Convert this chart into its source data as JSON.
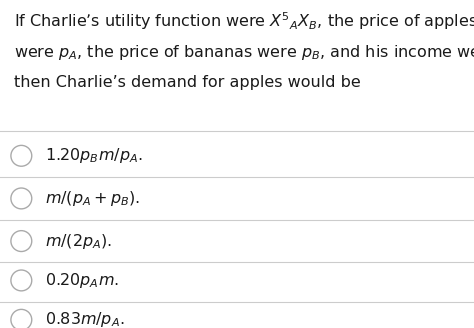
{
  "bg_color": "#ffffff",
  "text_color": "#1a1a1a",
  "question_lines": [
    "If Charlie’s utility function were $X^{5}{}_{A}X_{B}$, the price of apples",
    "were $p_{A}$, the price of bananas were $p_{B}$, and his income were $m$,",
    "then Charlie’s demand for apples would be"
  ],
  "options": [
    "$1.20p_{B}m/p_{A}$.",
    "$m/(p_{A}+p_{B})$.",
    "$m/(2p_{A})$.",
    "$0.20p_{A}m$.",
    "$0.83m/p_{A}$."
  ],
  "divider_color": "#cccccc",
  "circle_color": "#aaaaaa",
  "font_size_question": 11.5,
  "font_size_options": 11.5
}
